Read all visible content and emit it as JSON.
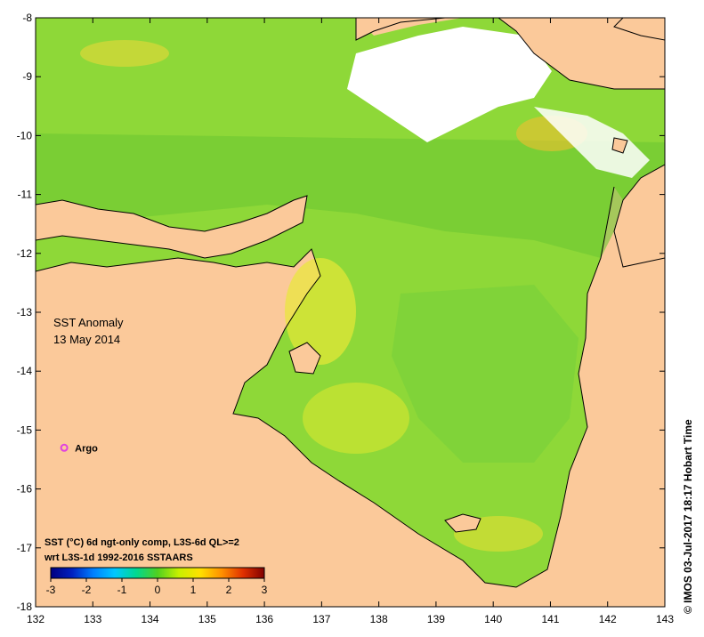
{
  "title": {
    "line1": "SST Anomaly",
    "line2": "13 May 2014"
  },
  "caption": {
    "line1": "SST (°C) 6d ngt-only comp, L3S-6d QL>=2",
    "line2": "wrt L3S-1d 1992-2016 SSTAARS"
  },
  "credit": "© IMOS 03-Jul-2017 18:17 Hobart Time",
  "marker": {
    "label": "Argo",
    "lon": 132.5,
    "lat": -15.3,
    "color": "#e040e0"
  },
  "colorbar": {
    "ticks": [
      "-3",
      "-2",
      "-1",
      "0",
      "1",
      "2",
      "3"
    ],
    "stops": [
      "#000080",
      "#0020c0",
      "#0080ff",
      "#00c8ff",
      "#00d890",
      "#50d020",
      "#c8f000",
      "#ffe000",
      "#ff9000",
      "#e03000",
      "#800000"
    ]
  },
  "axes": {
    "x": {
      "min": 132,
      "max": 143,
      "ticks": [
        "132",
        "133",
        "134",
        "135",
        "136",
        "137",
        "138",
        "139",
        "140",
        "141",
        "142",
        "143"
      ]
    },
    "y": {
      "min": -18,
      "max": -8,
      "ticks": [
        "-8",
        "-9",
        "-10",
        "-11",
        "-12",
        "-13",
        "-14",
        "-15",
        "-16",
        "-17",
        "-18"
      ]
    }
  },
  "colors": {
    "land": "#fbc99a",
    "sea_anomaly": "#8ed838",
    "warm_patch": "#f4e040",
    "cloud": "#ffffff",
    "coast": "#000000"
  }
}
